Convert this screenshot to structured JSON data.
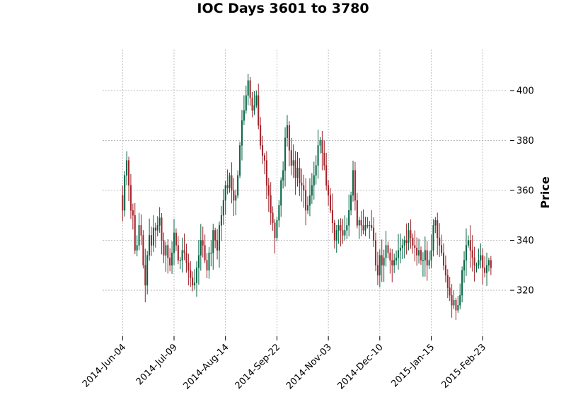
{
  "chart_data": {
    "type": "candlestick",
    "title": "IOC Days 3601 to 3780",
    "ylabel": "Price",
    "xlabel": "",
    "ylim": [
      301.6,
      416.4
    ],
    "yticks": [
      320,
      340,
      360,
      380,
      400
    ],
    "ytick_labels": [
      "320",
      "340",
      "360",
      "380",
      "400"
    ],
    "xticks": [
      {
        "label": "2014-Jun-04",
        "index": 0
      },
      {
        "label": "2014-Jul-09",
        "index": 25
      },
      {
        "label": "2014-Aug-14",
        "index": 50
      },
      {
        "label": "2014-Sep-22",
        "index": 75
      },
      {
        "label": "2014-Nov-03",
        "index": 100
      },
      {
        "label": "2014-Dec-10",
        "index": 125
      },
      {
        "label": "2015-Jan-15",
        "index": 150
      },
      {
        "label": "2015-Feb-23",
        "index": 175
      }
    ],
    "grid": true,
    "up_color": "#006340",
    "down_color": "#a02128",
    "closes": [
      352,
      366,
      372,
      362,
      352,
      350,
      336,
      338,
      346,
      342,
      330,
      322,
      334,
      342,
      338,
      345,
      344,
      346,
      349,
      340,
      334,
      338,
      333,
      330,
      335,
      343,
      338,
      332,
      332,
      336,
      335,
      331,
      328,
      325,
      322,
      323,
      329,
      334,
      340,
      338,
      332,
      328,
      335,
      335,
      344,
      340,
      336,
      346,
      350,
      356,
      362,
      361,
      366,
      360,
      356,
      358,
      366,
      378,
      388,
      392,
      398,
      404,
      397,
      392,
      394,
      398,
      386,
      378,
      374,
      372,
      362,
      358,
      351,
      347,
      341,
      348,
      354,
      364,
      368,
      381,
      386,
      376,
      370,
      372,
      365,
      369,
      363,
      362,
      360,
      352,
      354,
      358,
      362,
      366,
      370,
      378,
      380,
      375,
      370,
      362,
      358,
      352,
      347,
      340,
      344,
      346,
      344,
      342,
      344,
      346,
      352,
      358,
      368,
      356,
      346,
      348,
      346,
      344,
      346,
      346,
      346,
      345,
      340,
      330,
      326,
      334,
      330,
      333,
      338,
      335,
      332,
      330,
      332,
      333,
      336,
      337,
      338,
      340,
      339,
      344,
      341,
      338,
      337,
      334,
      336,
      332,
      332,
      336,
      330,
      332,
      336,
      346,
      348,
      341,
      338,
      335,
      330,
      326,
      321,
      318,
      314,
      316,
      312,
      314,
      318,
      328,
      332,
      338,
      340,
      336,
      333,
      330,
      330,
      332,
      334,
      329,
      327,
      330,
      332,
      329
    ],
    "ohlc": []
  }
}
